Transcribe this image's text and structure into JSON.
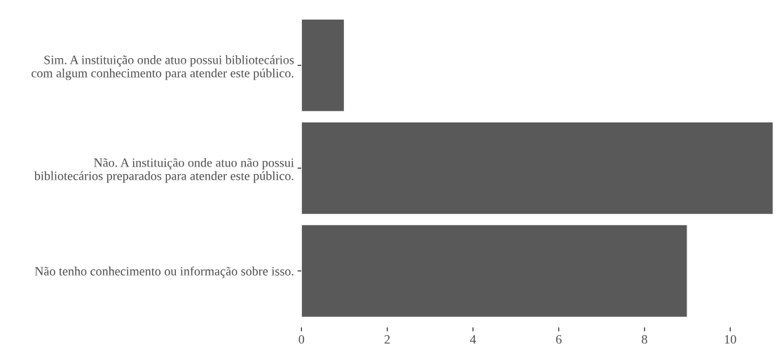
{
  "chart_data": {
    "type": "bar",
    "orientation": "horizontal",
    "categories": [
      "Sim. A instituição onde atuo possui bibliotecários\ncom algum conhecimento para atender este público.",
      "Não. A instituição onde atuo não possui\nbibliotecários preparados para atender este público.",
      "Não tenho conhecimento ou informação sobre isso."
    ],
    "values": [
      1,
      11,
      9
    ],
    "color": "#595959",
    "xlim": [
      0,
      11
    ],
    "xticks": [
      0,
      2,
      4,
      6,
      8,
      10
    ],
    "grid": false
  }
}
